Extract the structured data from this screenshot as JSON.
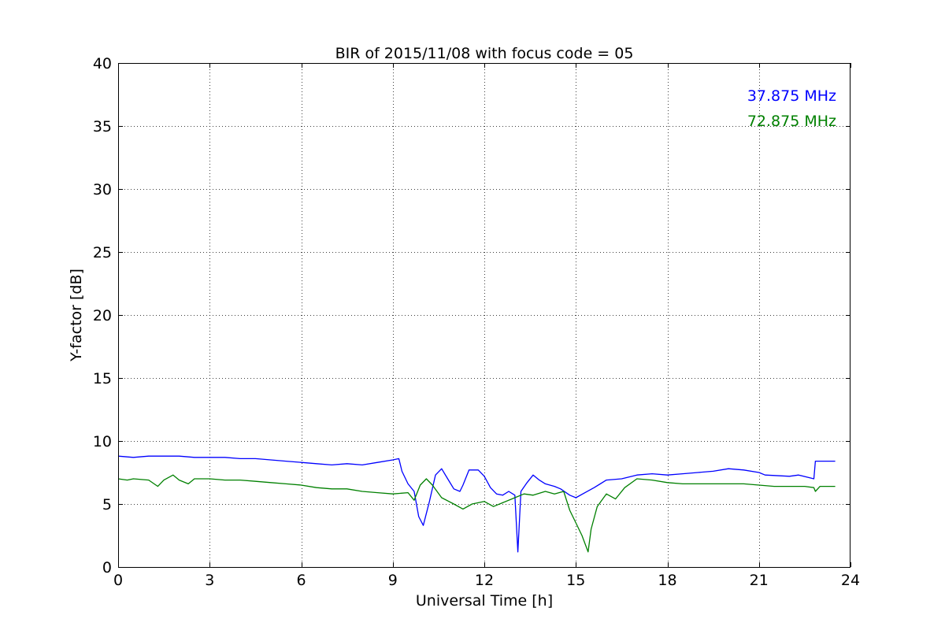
{
  "chart_data": {
    "type": "line",
    "title": "BIR of 2015/11/08 with focus code = 05",
    "xlabel": "Universal Time [h]",
    "ylabel": "Y-factor [dB]",
    "xlim": [
      0,
      24
    ],
    "ylim": [
      0,
      40
    ],
    "xticks": [
      "0",
      "3",
      "6",
      "9",
      "12",
      "15",
      "18",
      "21",
      "24"
    ],
    "yticks": [
      "0",
      "5",
      "10",
      "15",
      "20",
      "25",
      "30",
      "35",
      "40"
    ],
    "grid": true,
    "legend_position": "top-right",
    "series": [
      {
        "name": "37.875 MHz",
        "color": "#0000ff",
        "points": [
          [
            0,
            8.8
          ],
          [
            0.5,
            8.7
          ],
          [
            1,
            8.8
          ],
          [
            1.5,
            8.8
          ],
          [
            2,
            8.8
          ],
          [
            2.5,
            8.7
          ],
          [
            3,
            8.7
          ],
          [
            3.5,
            8.7
          ],
          [
            4,
            8.6
          ],
          [
            4.5,
            8.6
          ],
          [
            5,
            8.5
          ],
          [
            5.5,
            8.4
          ],
          [
            6,
            8.3
          ],
          [
            6.5,
            8.2
          ],
          [
            7,
            8.1
          ],
          [
            7.5,
            8.2
          ],
          [
            8,
            8.1
          ],
          [
            8.5,
            8.3
          ],
          [
            9,
            8.5
          ],
          [
            9.2,
            8.6
          ],
          [
            9.3,
            7.6
          ],
          [
            9.5,
            6.6
          ],
          [
            9.7,
            6.0
          ],
          [
            9.85,
            4.0
          ],
          [
            10,
            3.3
          ],
          [
            10.2,
            5.2
          ],
          [
            10.4,
            7.3
          ],
          [
            10.6,
            7.8
          ],
          [
            10.8,
            7.0
          ],
          [
            11,
            6.2
          ],
          [
            11.2,
            6.0
          ],
          [
            11.3,
            6.5
          ],
          [
            11.5,
            7.7
          ],
          [
            11.8,
            7.7
          ],
          [
            12,
            7.2
          ],
          [
            12.2,
            6.3
          ],
          [
            12.4,
            5.8
          ],
          [
            12.6,
            5.7
          ],
          [
            12.8,
            6.0
          ],
          [
            13,
            5.7
          ],
          [
            13.1,
            1.2
          ],
          [
            13.2,
            6.0
          ],
          [
            13.4,
            6.7
          ],
          [
            13.6,
            7.3
          ],
          [
            13.8,
            6.9
          ],
          [
            14,
            6.6
          ],
          [
            14.3,
            6.4
          ],
          [
            14.5,
            6.2
          ],
          [
            14.8,
            5.7
          ],
          [
            15,
            5.5
          ],
          [
            15.3,
            5.9
          ],
          [
            15.6,
            6.3
          ],
          [
            16,
            6.9
          ],
          [
            16.5,
            7.0
          ],
          [
            17,
            7.3
          ],
          [
            17.5,
            7.4
          ],
          [
            18,
            7.3
          ],
          [
            18.5,
            7.4
          ],
          [
            19,
            7.5
          ],
          [
            19.5,
            7.6
          ],
          [
            20,
            7.8
          ],
          [
            20.5,
            7.7
          ],
          [
            21,
            7.5
          ],
          [
            21.2,
            7.3
          ],
          [
            22,
            7.2
          ],
          [
            22.3,
            7.3
          ],
          [
            22.8,
            7.0
          ],
          [
            22.85,
            8.4
          ],
          [
            23,
            8.4
          ],
          [
            23.5,
            8.4
          ]
        ]
      },
      {
        "name": "72.875 MHz",
        "color": "#008000",
        "points": [
          [
            0,
            7.0
          ],
          [
            0.3,
            6.9
          ],
          [
            0.5,
            7.0
          ],
          [
            1,
            6.9
          ],
          [
            1.3,
            6.4
          ],
          [
            1.5,
            6.9
          ],
          [
            1.8,
            7.3
          ],
          [
            2,
            6.9
          ],
          [
            2.3,
            6.6
          ],
          [
            2.5,
            7.0
          ],
          [
            3,
            7.0
          ],
          [
            3.5,
            6.9
          ],
          [
            4,
            6.9
          ],
          [
            4.5,
            6.8
          ],
          [
            5,
            6.7
          ],
          [
            5.5,
            6.6
          ],
          [
            6,
            6.5
          ],
          [
            6.5,
            6.3
          ],
          [
            7,
            6.2
          ],
          [
            7.5,
            6.2
          ],
          [
            8,
            6.0
          ],
          [
            8.5,
            5.9
          ],
          [
            9,
            5.8
          ],
          [
            9.5,
            5.9
          ],
          [
            9.7,
            5.3
          ],
          [
            9.9,
            6.5
          ],
          [
            10.1,
            7.0
          ],
          [
            10.3,
            6.5
          ],
          [
            10.6,
            5.5
          ],
          [
            11,
            5.0
          ],
          [
            11.3,
            4.6
          ],
          [
            11.6,
            5.0
          ],
          [
            12,
            5.2
          ],
          [
            12.3,
            4.8
          ],
          [
            12.6,
            5.1
          ],
          [
            13,
            5.5
          ],
          [
            13.3,
            5.8
          ],
          [
            13.6,
            5.7
          ],
          [
            14,
            6.0
          ],
          [
            14.3,
            5.8
          ],
          [
            14.6,
            6.0
          ],
          [
            14.8,
            4.5
          ],
          [
            15,
            3.5
          ],
          [
            15.2,
            2.5
          ],
          [
            15.4,
            1.2
          ],
          [
            15.5,
            3.0
          ],
          [
            15.7,
            4.8
          ],
          [
            16,
            5.8
          ],
          [
            16.3,
            5.4
          ],
          [
            16.6,
            6.3
          ],
          [
            17,
            7.0
          ],
          [
            17.5,
            6.9
          ],
          [
            18,
            6.7
          ],
          [
            18.5,
            6.6
          ],
          [
            19,
            6.6
          ],
          [
            19.5,
            6.6
          ],
          [
            20,
            6.6
          ],
          [
            20.5,
            6.6
          ],
          [
            21,
            6.5
          ],
          [
            21.5,
            6.4
          ],
          [
            22,
            6.4
          ],
          [
            22.5,
            6.4
          ],
          [
            22.8,
            6.3
          ],
          [
            22.85,
            6.0
          ],
          [
            23,
            6.4
          ],
          [
            23.5,
            6.4
          ]
        ]
      }
    ]
  }
}
